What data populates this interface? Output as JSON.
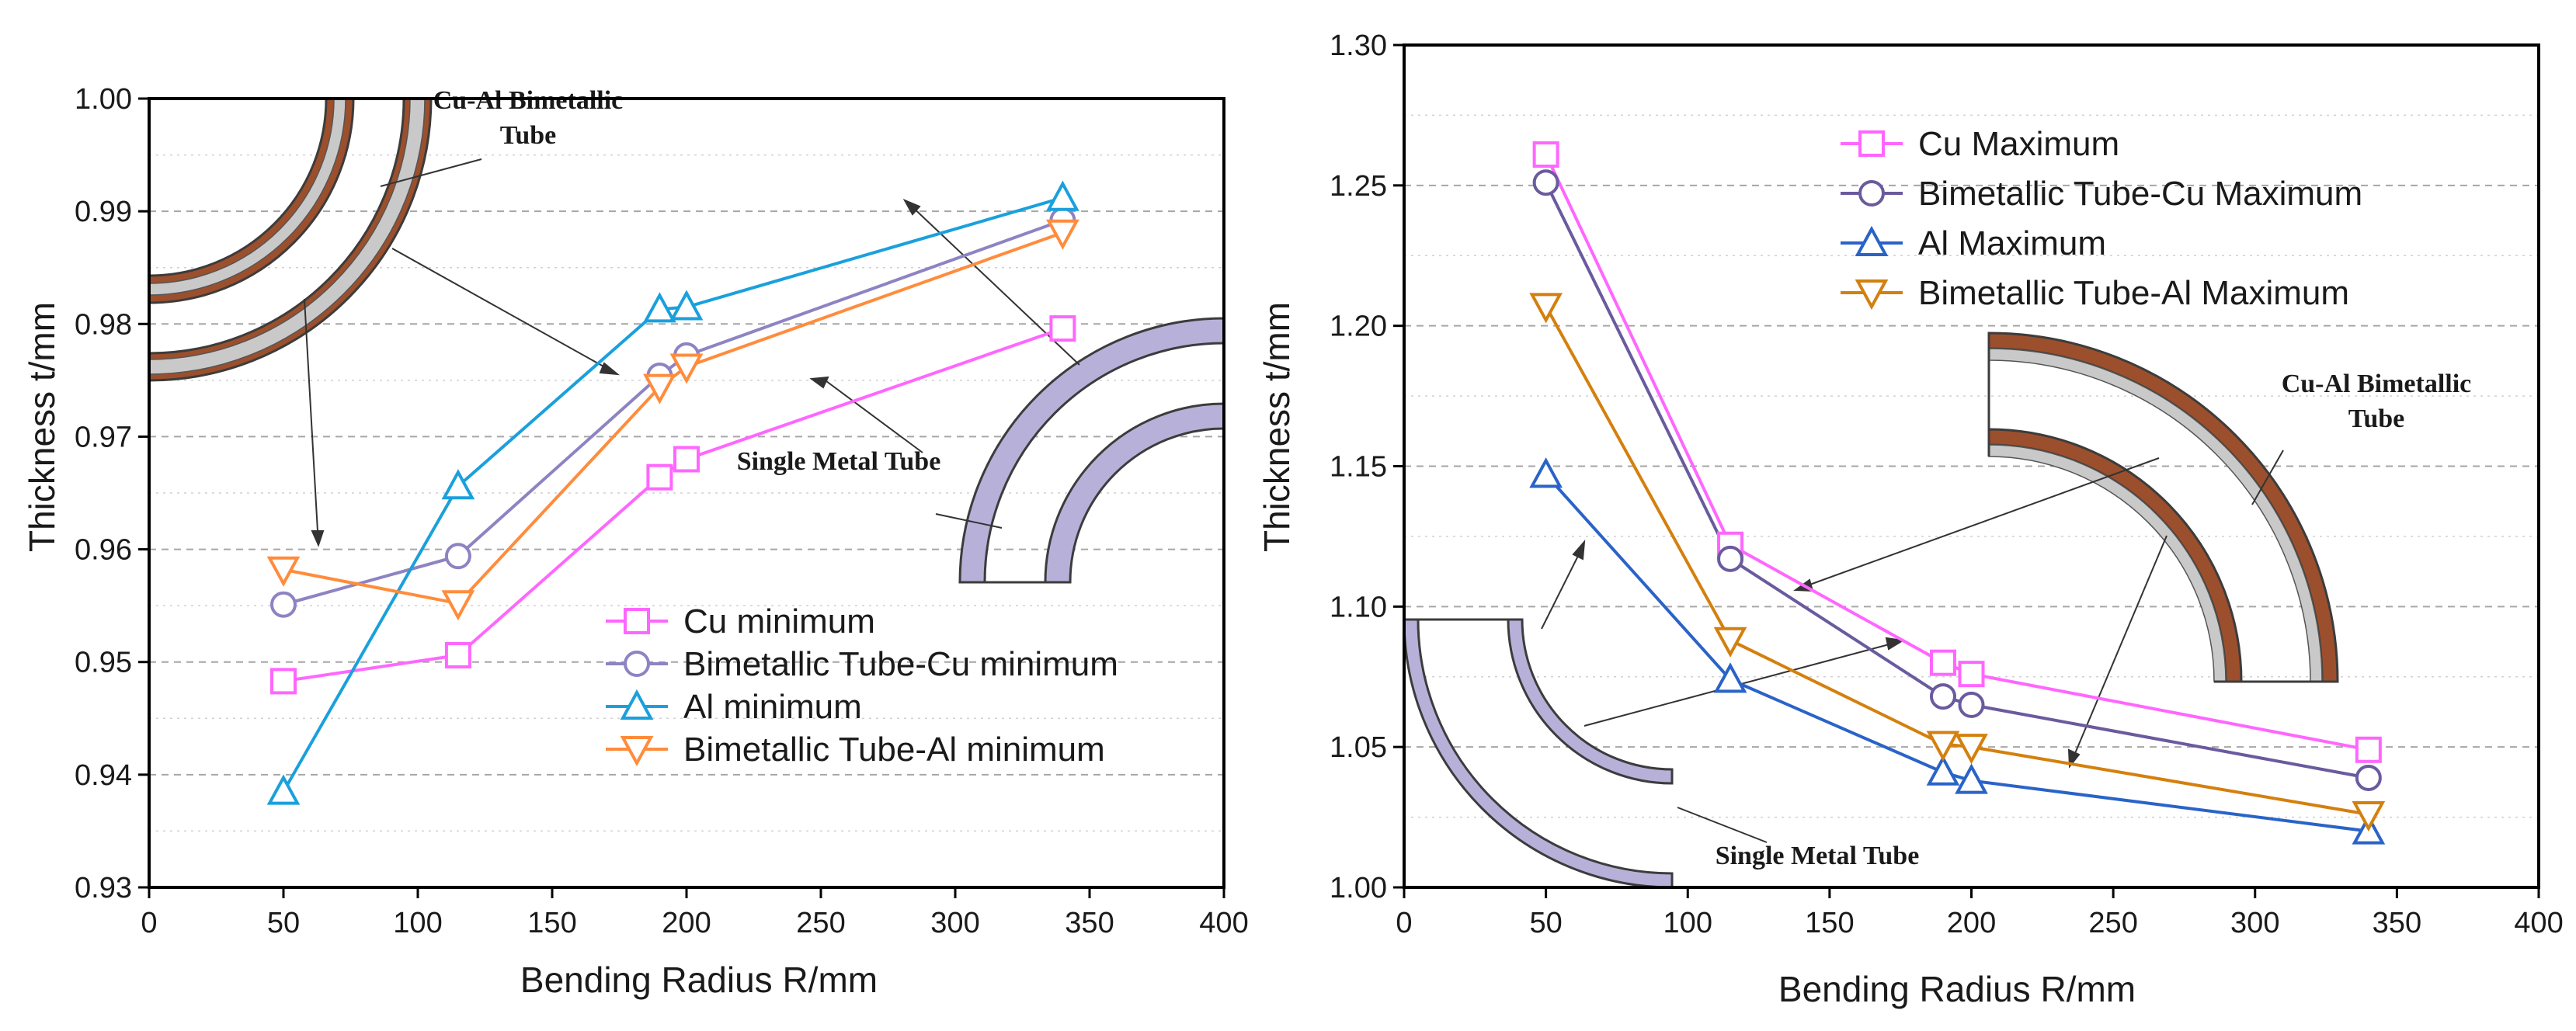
{
  "chart_data": [
    {
      "type": "line",
      "xlabel": "Bending Radius R/mm",
      "ylabel": "Thickness t/mm",
      "xlim": [
        0,
        400
      ],
      "ylim": [
        0.93,
        1.0
      ],
      "xticks": [
        0,
        50,
        100,
        150,
        200,
        250,
        300,
        350,
        400
      ],
      "xtick_labels": [
        "0",
        "50",
        "100",
        "150",
        "200",
        "250",
        "300",
        "350",
        "400"
      ],
      "yticks": [
        0.93,
        0.94,
        0.95,
        0.96,
        0.97,
        0.98,
        0.99,
        1.0
      ],
      "ytick_labels": [
        "0.93",
        "0.94",
        "0.95",
        "0.96",
        "0.97",
        "0.98",
        "0.99",
        "1.00"
      ],
      "grid": true,
      "legend_position": "bottom-right",
      "x": [
        50,
        115,
        190,
        200,
        340
      ],
      "series": [
        {
          "name": "Cu minimum",
          "marker": "square",
          "color": "#ff66ff",
          "values": [
            0.9483,
            0.9506,
            0.9664,
            0.968,
            0.9796
          ]
        },
        {
          "name": "Bimetallic Tube-Cu minimum",
          "marker": "circle",
          "color": "#8e83c2",
          "values": [
            0.9551,
            0.9594,
            0.9754,
            0.9772,
            0.9892
          ]
        },
        {
          "name": "Al minimum",
          "marker": "triangle-up",
          "color": "#1aa0dc",
          "values": [
            0.9385,
            0.9656,
            0.9813,
            0.9815,
            0.9912
          ]
        },
        {
          "name": "Bimetallic Tube-Al minimum",
          "marker": "triangle-down",
          "color": "#ff8c3c",
          "values": [
            0.9582,
            0.9552,
            0.9744,
            0.9762,
            0.9881
          ]
        }
      ],
      "annotations": {
        "bimetallic_label": "Cu-Al Bimetallic Tube",
        "bimetallic_label_lines": [
          "Cu-Al Bimetallic",
          "Tube"
        ],
        "single_label": "Single Metal Tube"
      }
    },
    {
      "type": "line",
      "xlabel": "Bending Radius R/mm",
      "ylabel": "Thickness t/mm",
      "xlim": [
        0,
        400
      ],
      "ylim": [
        1.0,
        1.3
      ],
      "xticks": [
        0,
        50,
        100,
        150,
        200,
        250,
        300,
        350,
        400
      ],
      "xtick_labels": [
        "0",
        "50",
        "100",
        "150",
        "200",
        "250",
        "300",
        "350",
        "400"
      ],
      "yticks": [
        1.0,
        1.05,
        1.1,
        1.15,
        1.2,
        1.25,
        1.3
      ],
      "ytick_labels": [
        "1.00",
        "1.05",
        "1.10",
        "1.15",
        "1.20",
        "1.25",
        "1.30"
      ],
      "grid": true,
      "legend_position": "top-right",
      "x": [
        50,
        115,
        190,
        200,
        340
      ],
      "series": [
        {
          "name": "Cu Maximum",
          "marker": "square",
          "color": "#ff66ff",
          "values": [
            1.261,
            1.122,
            1.08,
            1.076,
            1.049
          ]
        },
        {
          "name": "Bimetallic Tube-Cu Maximum",
          "marker": "circle",
          "color": "#6a5a9e",
          "values": [
            1.251,
            1.117,
            1.068,
            1.065,
            1.039
          ]
        },
        {
          "name": "Al Maximum",
          "marker": "triangle-up",
          "color": "#2a63c8",
          "values": [
            1.147,
            1.074,
            1.041,
            1.038,
            1.02
          ]
        },
        {
          "name": "Bimetallic Tube-Al Maximum",
          "marker": "triangle-down",
          "color": "#d4800e",
          "values": [
            1.207,
            1.088,
            1.051,
            1.05,
            1.026
          ]
        }
      ],
      "annotations": {
        "bimetallic_label": "Cu-Al Bimetallic Tube",
        "bimetallic_label_lines": [
          "Cu-Al Bimetallic",
          "Tube"
        ],
        "single_label": "Single Metal Tube"
      }
    }
  ]
}
